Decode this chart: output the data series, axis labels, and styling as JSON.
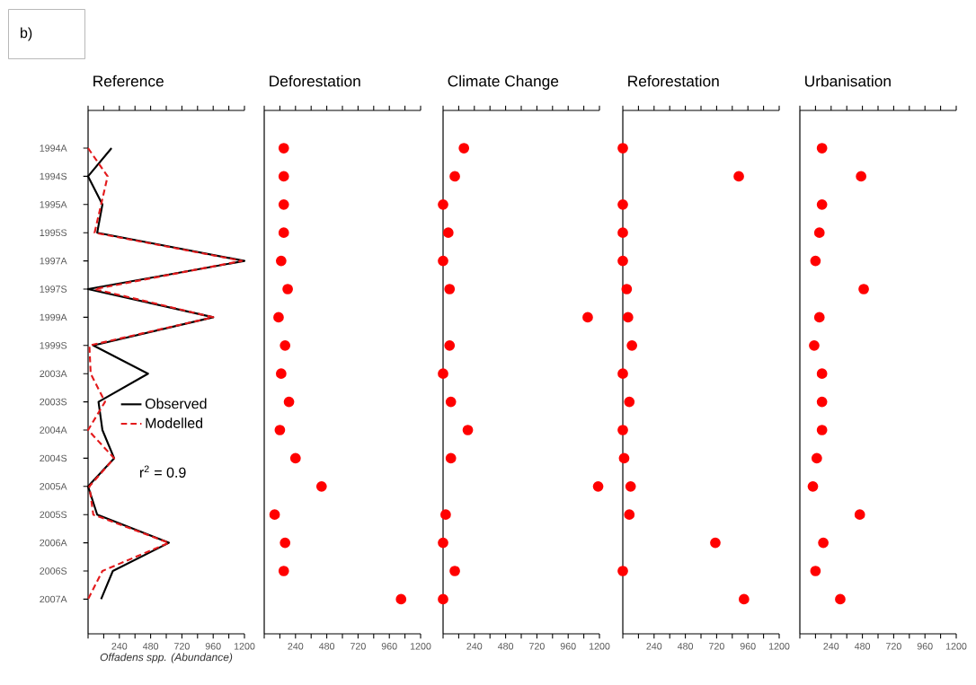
{
  "chart_data": [
    {
      "type": "line",
      "orientation": "horizontal",
      "title": "Reference",
      "xlabel": "*Offadens spp. (Abundance)*",
      "categories": [
        "1994A",
        "1994S",
        "1995A",
        "1995S",
        "1997A",
        "1997S",
        "1999A",
        "1999S",
        "2003A",
        "2003S",
        "2004A",
        "2004S",
        "2005A",
        "2005S",
        "2006A",
        "2006S",
        "2007A"
      ],
      "xlim": [
        0,
        1200
      ],
      "xticks": [
        {
          "value": 0,
          "label": null
        },
        {
          "value": 120,
          "label": null
        },
        240,
        {
          "value": 360,
          "label": null
        },
        480,
        {
          "value": 600,
          "label": null
        },
        720,
        {
          "value": 840,
          "label": null
        },
        960,
        {
          "value": 1080,
          "label": null
        },
        1200
      ],
      "marker": "none",
      "legend": "right",
      "annotations": [
        "b)",
        "r$^{2}$ = 0.9"
      ],
      "series": [
        {
          "name": "Observed",
          "color": "#000000",
          "line_style": "solid",
          "values": [
            180,
            0,
            110,
            70,
            1200,
            0,
            960,
            40,
            460,
            80,
            110,
            200,
            0,
            70,
            620,
            190,
            100
          ]
        },
        {
          "name": "Modelled",
          "color": "#e31a1c",
          "line_style": "dashed",
          "values": [
            0,
            150,
            100,
            50,
            1180,
            50,
            960,
            10,
            20,
            130,
            0,
            200,
            10,
            40,
            620,
            110,
            0
          ]
        }
      ]
    },
    {
      "type": "scatter",
      "orientation": "horizontal",
      "title": "Deforestation",
      "tick_labels": "x",
      "categories": [
        null,
        null,
        null,
        null,
        null,
        null,
        null,
        null,
        null,
        null,
        null,
        null,
        null,
        null,
        null,
        null,
        null
      ],
      "xlim": [
        0,
        1200
      ],
      "xticks": [
        {
          "value": 0,
          "label": null
        },
        {
          "value": 120,
          "label": null
        },
        240,
        {
          "value": 360,
          "label": null
        },
        480,
        {
          "value": 600,
          "label": null
        },
        720,
        {
          "value": 840,
          "label": null
        },
        960,
        {
          "value": 1080,
          "label": null
        },
        1200
      ],
      "marker": "circle",
      "color": "#ff0000",
      "values": [
        150,
        150,
        150,
        150,
        130,
        180,
        110,
        160,
        130,
        190,
        120,
        240,
        440,
        80,
        160,
        150,
        1050
      ]
    },
    {
      "type": "scatter",
      "orientation": "horizontal",
      "title": "Climate Change",
      "tick_labels": "x",
      "categories": [
        null,
        null,
        null,
        null,
        null,
        null,
        null,
        null,
        null,
        null,
        null,
        null,
        null,
        null,
        null,
        null,
        null
      ],
      "xlim": [
        0,
        1200
      ],
      "xticks": [
        {
          "value": 0,
          "label": null
        },
        {
          "value": 120,
          "label": null
        },
        240,
        {
          "value": 360,
          "label": null
        },
        480,
        {
          "value": 600,
          "label": null
        },
        720,
        {
          "value": 840,
          "label": null
        },
        960,
        {
          "value": 1080,
          "label": null
        },
        1200
      ],
      "marker": "circle",
      "color": "#ff0000",
      "values": [
        160,
        90,
        0,
        40,
        0,
        50,
        1110,
        50,
        0,
        60,
        190,
        60,
        1190,
        20,
        0,
        90,
        0
      ]
    },
    {
      "type": "scatter",
      "orientation": "horizontal",
      "title": "Reforestation",
      "tick_labels": "x",
      "categories": [
        null,
        null,
        null,
        null,
        null,
        null,
        null,
        null,
        null,
        null,
        null,
        null,
        null,
        null,
        null,
        null,
        null
      ],
      "xlim": [
        0,
        1200
      ],
      "xticks": [
        {
          "value": 0,
          "label": null
        },
        {
          "value": 120,
          "label": null
        },
        240,
        {
          "value": 360,
          "label": null
        },
        480,
        {
          "value": 600,
          "label": null
        },
        720,
        {
          "value": 840,
          "label": null
        },
        960,
        {
          "value": 1080,
          "label": null
        },
        1200
      ],
      "marker": "circle",
      "color": "#ff0000",
      "values": [
        0,
        890,
        0,
        0,
        0,
        30,
        40,
        70,
        0,
        50,
        0,
        10,
        60,
        50,
        710,
        0,
        930
      ]
    },
    {
      "type": "scatter",
      "orientation": "horizontal",
      "title": "Urbanisation",
      "tick_labels": "x",
      "categories": [
        null,
        null,
        null,
        null,
        null,
        null,
        null,
        null,
        null,
        null,
        null,
        null,
        null,
        null,
        null,
        null,
        null
      ],
      "xlim": [
        0,
        1200
      ],
      "xticks": [
        {
          "value": 0,
          "label": null
        },
        {
          "value": 120,
          "label": null
        },
        240,
        {
          "value": 360,
          "label": null
        },
        480,
        {
          "value": 600,
          "label": null
        },
        720,
        {
          "value": 840,
          "label": null
        },
        960,
        {
          "value": 1080,
          "label": null
        },
        1200
      ],
      "marker": "circle",
      "color": "#ff0000",
      "values": [
        170,
        470,
        170,
        150,
        120,
        490,
        150,
        110,
        170,
        170,
        170,
        130,
        100,
        460,
        180,
        120,
        310
      ]
    }
  ]
}
